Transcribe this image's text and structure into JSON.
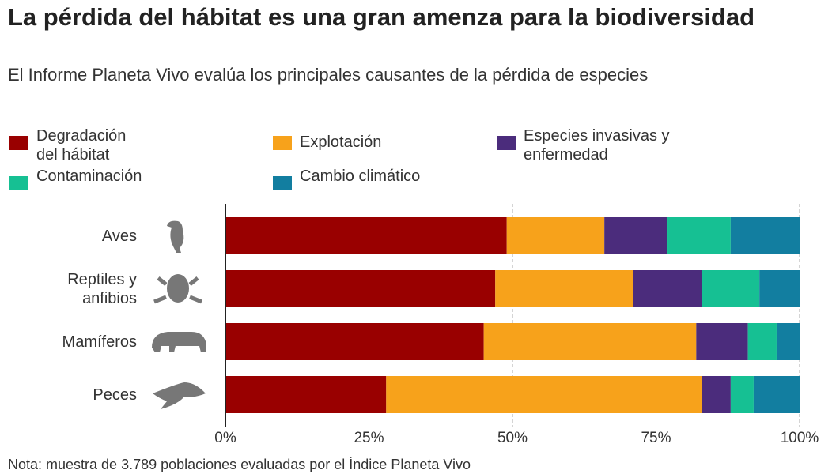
{
  "chart_data": {
    "type": "stacked-bar-horizontal",
    "title": "La pérdida del hábitat es una gran amenza para la biodiversidad",
    "subtitle": "El Informe Planeta Vivo evalúa los principales causantes de la pérdida de especies",
    "note": "Nota: muestra de 3.789 poblaciones evaluadas por el Índice Planeta Vivo",
    "categories": [
      "Aves",
      "Reptiles y anfibios",
      "Mamíferos",
      "Peces"
    ],
    "series": [
      {
        "name": "Degradación del hábitat",
        "color": "#990000",
        "values": [
          49,
          47,
          45,
          28
        ]
      },
      {
        "name": "Explotación",
        "color": "#f7a21b",
        "values": [
          17,
          24,
          37,
          55
        ]
      },
      {
        "name": "Especies invasivas y enfermedad",
        "color": "#4b2c7c",
        "values": [
          11,
          12,
          9,
          5
        ]
      },
      {
        "name": "Contaminación",
        "color": "#16c093",
        "values": [
          11,
          10,
          5,
          4
        ]
      },
      {
        "name": "Cambio climático",
        "color": "#127ea0",
        "values": [
          12,
          7,
          4,
          8
        ]
      }
    ],
    "xlim": [
      0,
      100
    ],
    "xticks": [
      {
        "value": 0,
        "label": "0%"
      },
      {
        "value": 25,
        "label": "25%"
      },
      {
        "value": 50,
        "label": "50%"
      },
      {
        "value": 75,
        "label": "75%"
      },
      {
        "value": 100,
        "label": "100%"
      }
    ],
    "grid": true
  }
}
